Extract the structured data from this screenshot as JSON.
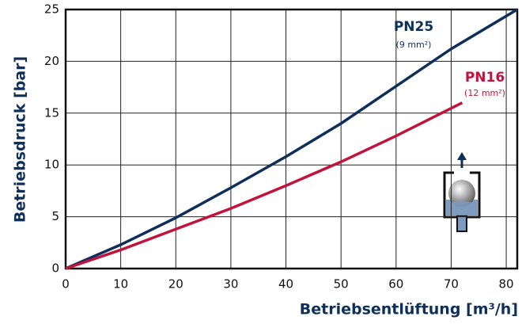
{
  "chart_data": {
    "type": "line",
    "xlabel": "Betriebsentlüftung [m³/h]",
    "ylabel": "Betriebsdruck [bar]",
    "xlim": [
      0,
      82
    ],
    "ylim": [
      0,
      25
    ],
    "xticks": [
      0,
      10,
      20,
      30,
      40,
      50,
      60,
      70,
      80
    ],
    "yticks": [
      0,
      5,
      10,
      15,
      20,
      25
    ],
    "grid": true,
    "series": [
      {
        "name": "PN25",
        "color": "#0d2f5a",
        "x": [
          0,
          10,
          20,
          30,
          40,
          50,
          60,
          70,
          82
        ],
        "values": [
          0,
          2.3,
          4.9,
          7.8,
          10.8,
          14.0,
          17.6,
          21.2,
          25
        ]
      },
      {
        "name": "PN16",
        "color": "#c0143c",
        "x": [
          0,
          10,
          20,
          30,
          40,
          50,
          60,
          72
        ],
        "values": [
          0,
          1.8,
          3.8,
          5.8,
          8.0,
          10.3,
          12.8,
          16
        ]
      }
    ],
    "annotations": [
      "(9 mm²)",
      "(12 mm²)"
    ]
  }
}
